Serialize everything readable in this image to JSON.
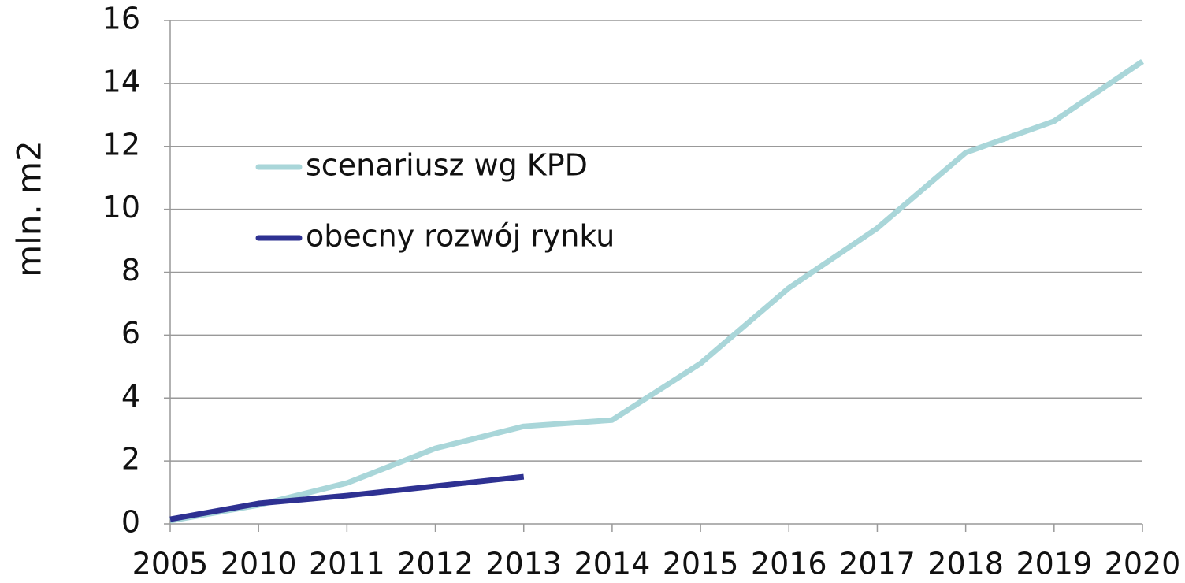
{
  "chart_data": {
    "type": "line",
    "y_label": "mln. m2",
    "categories": [
      "2005",
      "2010",
      "2011",
      "2012",
      "2013",
      "2014",
      "2015",
      "2016",
      "2017",
      "2018",
      "2019",
      "2020"
    ],
    "series": [
      {
        "name": "scenariusz wg KPD",
        "color": "#a9d6d9",
        "values": [
          0.1,
          0.6,
          1.3,
          2.4,
          3.1,
          3.3,
          5.1,
          7.5,
          9.4,
          11.8,
          12.8,
          14.7
        ]
      },
      {
        "name": "obecny rozwój rynku",
        "color": "#2e3192",
        "values": [
          0.15,
          0.65,
          0.9,
          1.2,
          1.5,
          null,
          null,
          null,
          null,
          null,
          null,
          null
        ]
      }
    ],
    "ylim": [
      0,
      16
    ],
    "yticks": [
      0,
      2,
      4,
      6,
      8,
      10,
      12,
      14,
      16
    ],
    "grid": true
  }
}
